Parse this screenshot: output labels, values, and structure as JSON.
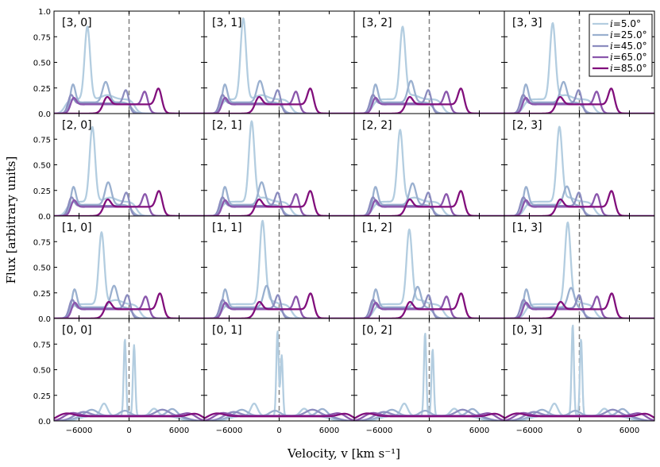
{
  "chart_data": {
    "type": "line",
    "grid": "4x4 small multiples",
    "ylabel": "Flux [arbitrary units]",
    "xlabel": "Velocity, v [km s⁻¹]",
    "xlim": [
      -9000,
      9000
    ],
    "ylim": [
      0,
      1.0
    ],
    "xticks": [
      -6000,
      0,
      6000
    ],
    "xtick_labels": [
      "−6000",
      "0",
      "6000"
    ],
    "yticks": [
      0,
      0.25,
      0.5,
      0.75,
      1.0
    ],
    "ytick_labels": [
      "0.0",
      "0.25",
      "0.50",
      "0.75",
      "1.0"
    ],
    "reference_line_x": 0,
    "legend_position": "top-right of panel [3, 3]",
    "series": [
      {
        "name": "i=5.0°",
        "label_var": "i",
        "label_value": "=5.0°",
        "color": "#b3cde0"
      },
      {
        "name": "i=25.0°",
        "label_var": "i",
        "label_value": "=25.0°",
        "color": "#9ab0cf"
      },
      {
        "name": "i=45.0°",
        "label_var": "i",
        "label_value": "=45.0°",
        "color": "#8c8dbf"
      },
      {
        "name": "i=65.0°",
        "label_var": "i",
        "label_value": "=65.0°",
        "color": "#8a56ac"
      },
      {
        "name": "i=85.0°",
        "label_var": "i",
        "label_value": "=85.0°",
        "color": "#810f7c"
      }
    ],
    "panels": [
      {
        "label": "[3, 0]",
        "row": 0,
        "col": 0,
        "kind": "upper",
        "c5": -5000,
        "p5": 0.85,
        "c25": -2800,
        "p25": 0.31,
        "shift": -1500
      },
      {
        "label": "[3, 1]",
        "row": 0,
        "col": 1,
        "kind": "upper",
        "c5": -4300,
        "p5": 0.93,
        "c25": -2300,
        "p25": 0.32,
        "shift": -800
      },
      {
        "label": "[3, 2]",
        "row": 0,
        "col": 2,
        "kind": "upper",
        "c5": -3200,
        "p5": 0.84,
        "c25": -2200,
        "p25": 0.32,
        "shift": -600
      },
      {
        "label": "[3, 3]",
        "row": 0,
        "col": 3,
        "kind": "upper",
        "c5": -3200,
        "p5": 0.88,
        "c25": -1900,
        "p25": 0.31,
        "shift": -500
      },
      {
        "label": "[2, 0]",
        "row": 1,
        "col": 0,
        "kind": "upper",
        "c5": -4400,
        "p5": 0.87,
        "c25": -2500,
        "p25": 0.33,
        "shift": -1300
      },
      {
        "label": "[2, 1]",
        "row": 1,
        "col": 1,
        "kind": "upper",
        "c5": -3300,
        "p5": 0.92,
        "c25": -2100,
        "p25": 0.33,
        "shift": -800
      },
      {
        "label": "[2, 2]",
        "row": 1,
        "col": 2,
        "kind": "upper",
        "c5": -3500,
        "p5": 0.84,
        "c25": -2000,
        "p25": 0.32,
        "shift": -600
      },
      {
        "label": "[2, 3]",
        "row": 1,
        "col": 3,
        "kind": "upper",
        "c5": -2400,
        "p5": 0.86,
        "c25": -1500,
        "p25": 0.29,
        "shift": -400
      },
      {
        "label": "[1, 0]",
        "row": 2,
        "col": 0,
        "kind": "upper",
        "c5": -3300,
        "p5": 0.84,
        "c25": -1800,
        "p25": 0.32,
        "shift": -900
      },
      {
        "label": "[1, 1]",
        "row": 2,
        "col": 1,
        "kind": "upper",
        "c5": -2000,
        "p5": 0.93,
        "c25": -1500,
        "p25": 0.32,
        "shift": -700
      },
      {
        "label": "[1, 2]",
        "row": 2,
        "col": 2,
        "kind": "upper",
        "c5": -2400,
        "p5": 0.86,
        "c25": -1400,
        "p25": 0.31,
        "shift": -500
      },
      {
        "label": "[1, 3]",
        "row": 2,
        "col": 3,
        "kind": "upper",
        "c5": -1400,
        "p5": 0.91,
        "c25": -1000,
        "p25": 0.3,
        "shift": -300
      },
      {
        "label": "[0, 0]",
        "row": 3,
        "col": 0,
        "kind": "lower",
        "c5": -500,
        "p5": 0.8,
        "d5": 600,
        "q5": 0.74
      },
      {
        "label": "[0, 1]",
        "row": 3,
        "col": 1,
        "kind": "lower",
        "c5": -200,
        "p5": 0.88,
        "d5": 300,
        "q5": 0.64
      },
      {
        "label": "[0, 2]",
        "row": 3,
        "col": 2,
        "kind": "lower",
        "c5": -500,
        "p5": 0.86,
        "d5": 400,
        "q5": 0.7
      },
      {
        "label": "[0, 3]",
        "row": 3,
        "col": 3,
        "kind": "lower",
        "c5": -800,
        "p5": 0.94,
        "d5": 200,
        "q5": 0.8
      }
    ]
  }
}
